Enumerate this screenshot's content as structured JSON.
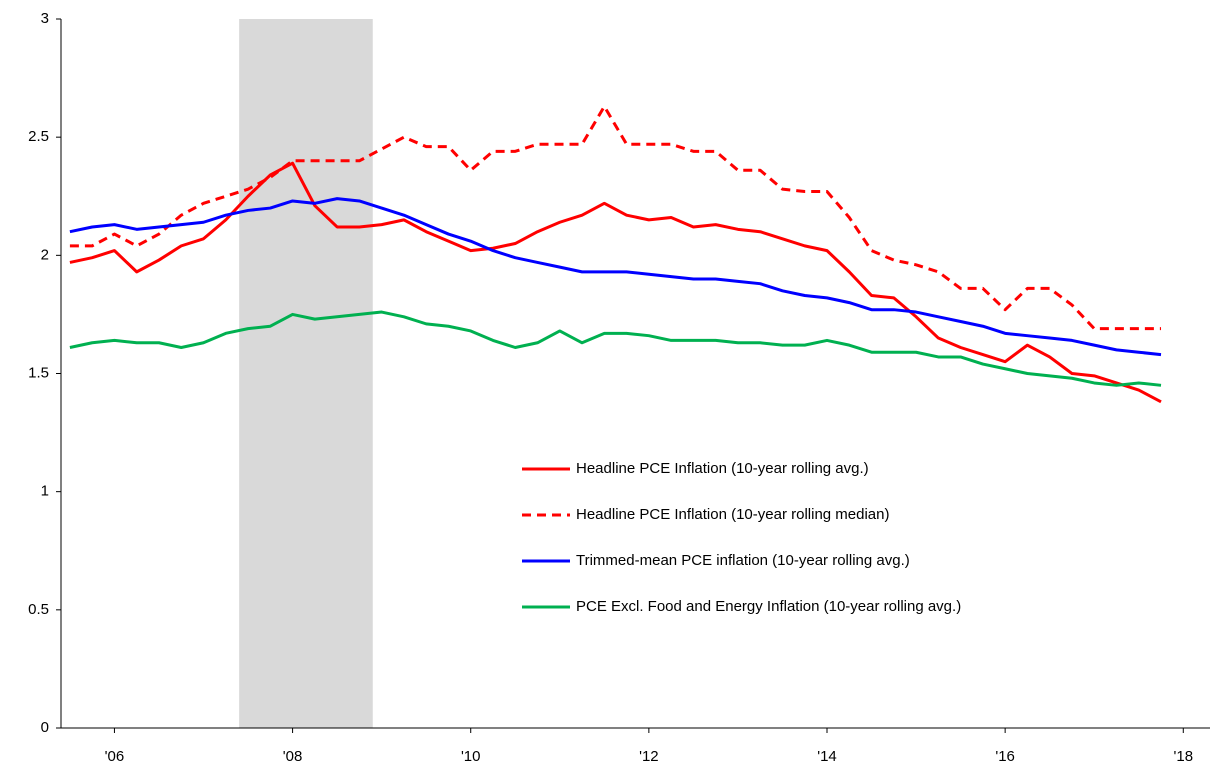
{
  "chart_data": {
    "type": "line",
    "x": [
      2005.5,
      2005.75,
      2006,
      2006.25,
      2006.5,
      2006.75,
      2007,
      2007.25,
      2007.5,
      2007.75,
      2008,
      2008.25,
      2008.5,
      2008.75,
      2009,
      2009.25,
      2009.5,
      2009.75,
      2010,
      2010.25,
      2010.5,
      2010.75,
      2011,
      2011.25,
      2011.5,
      2011.75,
      2012,
      2012.25,
      2012.5,
      2012.75,
      2013,
      2013.25,
      2013.5,
      2013.75,
      2014,
      2014.25,
      2014.5,
      2014.75,
      2015,
      2015.25,
      2015.5,
      2015.75,
      2016,
      2016.25,
      2016.5,
      2016.75,
      2017,
      2017.25,
      2017.5,
      2017.75
    ],
    "series": [
      {
        "name": "Headline PCE Inflation (10-year rolling avg.)",
        "color": "#ff0000",
        "dashed": false,
        "values": [
          1.97,
          1.99,
          2.02,
          1.93,
          1.98,
          2.04,
          2.07,
          2.15,
          2.25,
          2.34,
          2.39,
          2.21,
          2.12,
          2.12,
          2.13,
          2.15,
          2.1,
          2.06,
          2.02,
          2.03,
          2.05,
          2.1,
          2.14,
          2.17,
          2.22,
          2.17,
          2.15,
          2.16,
          2.12,
          2.13,
          2.11,
          2.1,
          2.07,
          2.04,
          2.02,
          1.93,
          1.83,
          1.82,
          1.74,
          1.65,
          1.61,
          1.58,
          1.55,
          1.62,
          1.57,
          1.5,
          1.49,
          1.46,
          1.43,
          1.38
        ]
      },
      {
        "name": "Headline PCE Inflation (10-year rolling median)",
        "color": "#ff0000",
        "dashed": true,
        "values": [
          2.04,
          2.04,
          2.09,
          2.04,
          2.09,
          2.17,
          2.22,
          2.25,
          2.28,
          2.33,
          2.4,
          2.4,
          2.4,
          2.4,
          2.45,
          2.5,
          2.46,
          2.46,
          2.36,
          2.44,
          2.44,
          2.47,
          2.47,
          2.47,
          2.63,
          2.47,
          2.47,
          2.47,
          2.44,
          2.44,
          2.36,
          2.36,
          2.28,
          2.27,
          2.27,
          2.16,
          2.02,
          1.98,
          1.96,
          1.93,
          1.86,
          1.86,
          1.77,
          1.86,
          1.86,
          1.79,
          1.69,
          1.69,
          1.69,
          1.69
        ]
      },
      {
        "name": "Trimmed-mean PCE inflation (10-year rolling avg.)",
        "color": "#0000ff",
        "dashed": false,
        "values": [
          2.1,
          2.12,
          2.13,
          2.11,
          2.12,
          2.13,
          2.14,
          2.17,
          2.19,
          2.2,
          2.23,
          2.22,
          2.24,
          2.23,
          2.2,
          2.17,
          2.13,
          2.09,
          2.06,
          2.02,
          1.99,
          1.97,
          1.95,
          1.93,
          1.93,
          1.93,
          1.92,
          1.91,
          1.9,
          1.9,
          1.89,
          1.88,
          1.85,
          1.83,
          1.82,
          1.8,
          1.77,
          1.77,
          1.76,
          1.74,
          1.72,
          1.7,
          1.67,
          1.66,
          1.65,
          1.64,
          1.62,
          1.6,
          1.59,
          1.58
        ]
      },
      {
        "name": "PCE Excl. Food and Energy Inflation (10-year rolling avg.)",
        "color": "#00b050",
        "dashed": false,
        "values": [
          1.61,
          1.63,
          1.64,
          1.63,
          1.63,
          1.61,
          1.63,
          1.67,
          1.69,
          1.7,
          1.75,
          1.73,
          1.74,
          1.75,
          1.76,
          1.74,
          1.71,
          1.7,
          1.68,
          1.64,
          1.61,
          1.63,
          1.68,
          1.63,
          1.67,
          1.67,
          1.66,
          1.64,
          1.64,
          1.64,
          1.63,
          1.63,
          1.62,
          1.62,
          1.64,
          1.62,
          1.59,
          1.59,
          1.59,
          1.57,
          1.57,
          1.54,
          1.52,
          1.5,
          1.49,
          1.48,
          1.46,
          1.45,
          1.46,
          1.45
        ]
      }
    ],
    "xlim": [
      2005.4,
      2018.3
    ],
    "xticks": [
      {
        "value": 2006,
        "label": "'06"
      },
      {
        "value": 2008,
        "label": "'08"
      },
      {
        "value": 2010,
        "label": "'10"
      },
      {
        "value": 2012,
        "label": "'12"
      },
      {
        "value": 2014,
        "label": "'14"
      },
      {
        "value": 2016,
        "label": "'16"
      },
      {
        "value": 2018,
        "label": "'18"
      }
    ],
    "ylim": [
      0,
      3
    ],
    "yticks": [
      0,
      0.5,
      1,
      1.5,
      2,
      2.5,
      3
    ],
    "shaded_region": [
      2007.4,
      2008.9
    ],
    "shade_color": "#d9d9d9",
    "legend": "lower right",
    "grid": false
  }
}
